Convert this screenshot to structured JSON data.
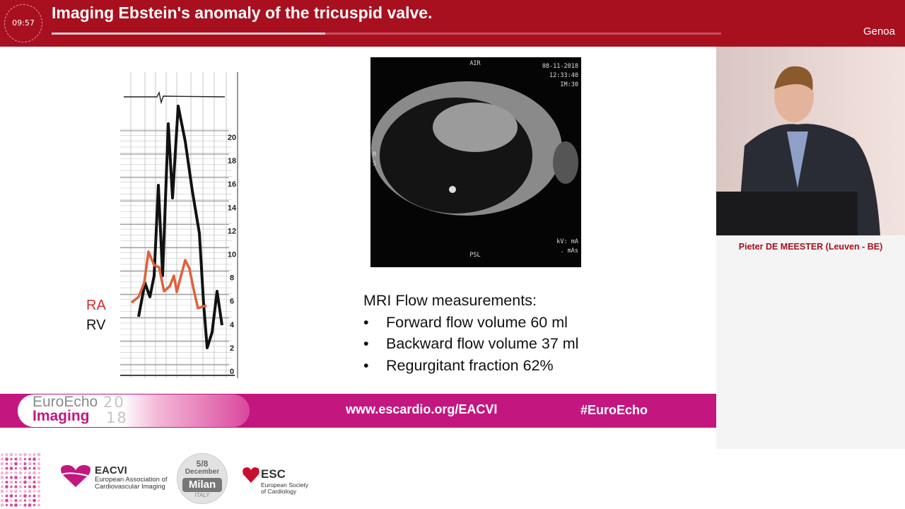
{
  "header": {
    "timer": "09:57",
    "title": "Imaging Ebstein's anomaly of the tricuspid valve.",
    "location": "Genoa"
  },
  "slide": {
    "tracing": {
      "scale": [
        0,
        2,
        4,
        6,
        8,
        10,
        12,
        14,
        16,
        18,
        20
      ],
      "labels": [
        "RA",
        "RV"
      ]
    },
    "mri": {
      "top": "AIR",
      "date": "08-11-2018",
      "time": "12:33:40",
      "image": "IM:30",
      "left_top": "R",
      "left_bottom": "S",
      "bottom": "PSL",
      "kv": "kV: mA",
      "mas": ". mAs"
    },
    "flow": {
      "heading": "MRI Flow measurements:",
      "items": [
        "Forward flow volume 60 ml",
        "Backward flow volume 37 ml",
        "Regurgitant fraction 62%"
      ]
    }
  },
  "banner": {
    "logo_line1": "EuroEcho",
    "logo_line2": "Imaging",
    "year_top": "20",
    "year_bottom": "18",
    "url": "www.escardio.org/EACVI",
    "hashtag": "#EuroEcho"
  },
  "speaker": {
    "name": "Pieter DE MEESTER (Leuven - BE)"
  },
  "footer": {
    "eacvi": {
      "name": "EACVI",
      "lines": [
        "European Association of",
        "Cardiovascular Imaging"
      ]
    },
    "badge": {
      "dates": "5/8",
      "month": "December",
      "city": "Milan",
      "country": "ITALY"
    },
    "esc": {
      "name": "ESC",
      "lines": [
        "European Society",
        "of Cardiology"
      ]
    }
  }
}
